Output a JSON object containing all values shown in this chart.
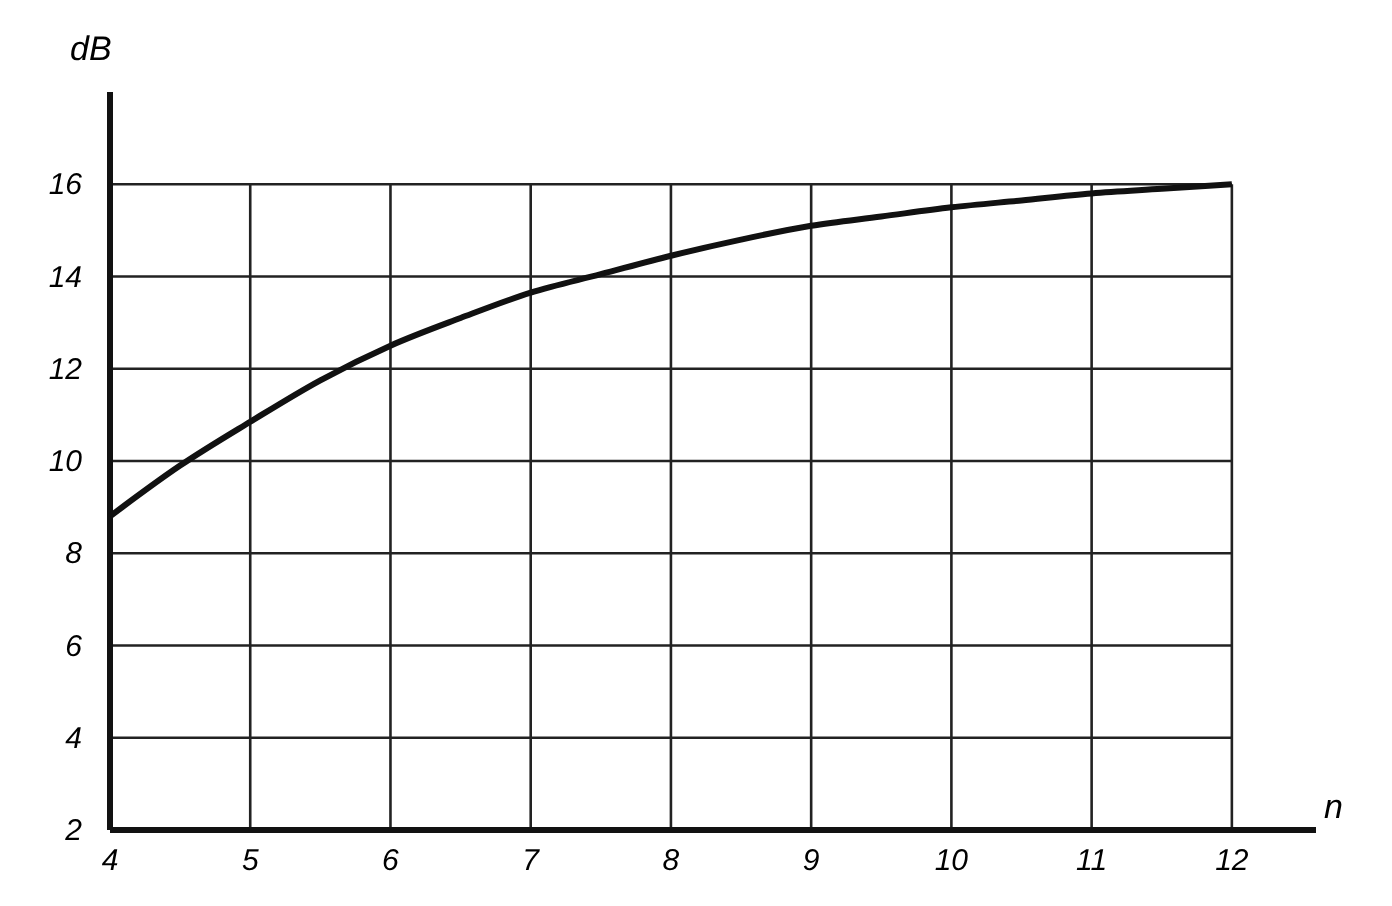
{
  "chart_data": {
    "type": "line",
    "xlabel": "n",
    "ylabel": "dB",
    "x": [
      4,
      4.5,
      5,
      5.5,
      6,
      6.5,
      7,
      7.5,
      8,
      8.5,
      9,
      9.5,
      10,
      10.5,
      11,
      11.5,
      12
    ],
    "series": [
      {
        "color": "#111111",
        "values": [
          8.8,
          9.9,
          10.85,
          11.75,
          12.5,
          13.1,
          13.65,
          14.05,
          14.45,
          14.8,
          15.1,
          15.3,
          15.5,
          15.65,
          15.8,
          15.9,
          16
        ]
      }
    ],
    "xlim": [
      4,
      12.6
    ],
    "ylim": [
      2,
      18
    ],
    "xticks": [
      4,
      5,
      6,
      7,
      8,
      9,
      10,
      11,
      12
    ],
    "yticks": [
      2,
      4,
      6,
      8,
      10,
      12,
      14,
      16
    ],
    "grid": true,
    "marker": "none",
    "line_style": "solid"
  }
}
